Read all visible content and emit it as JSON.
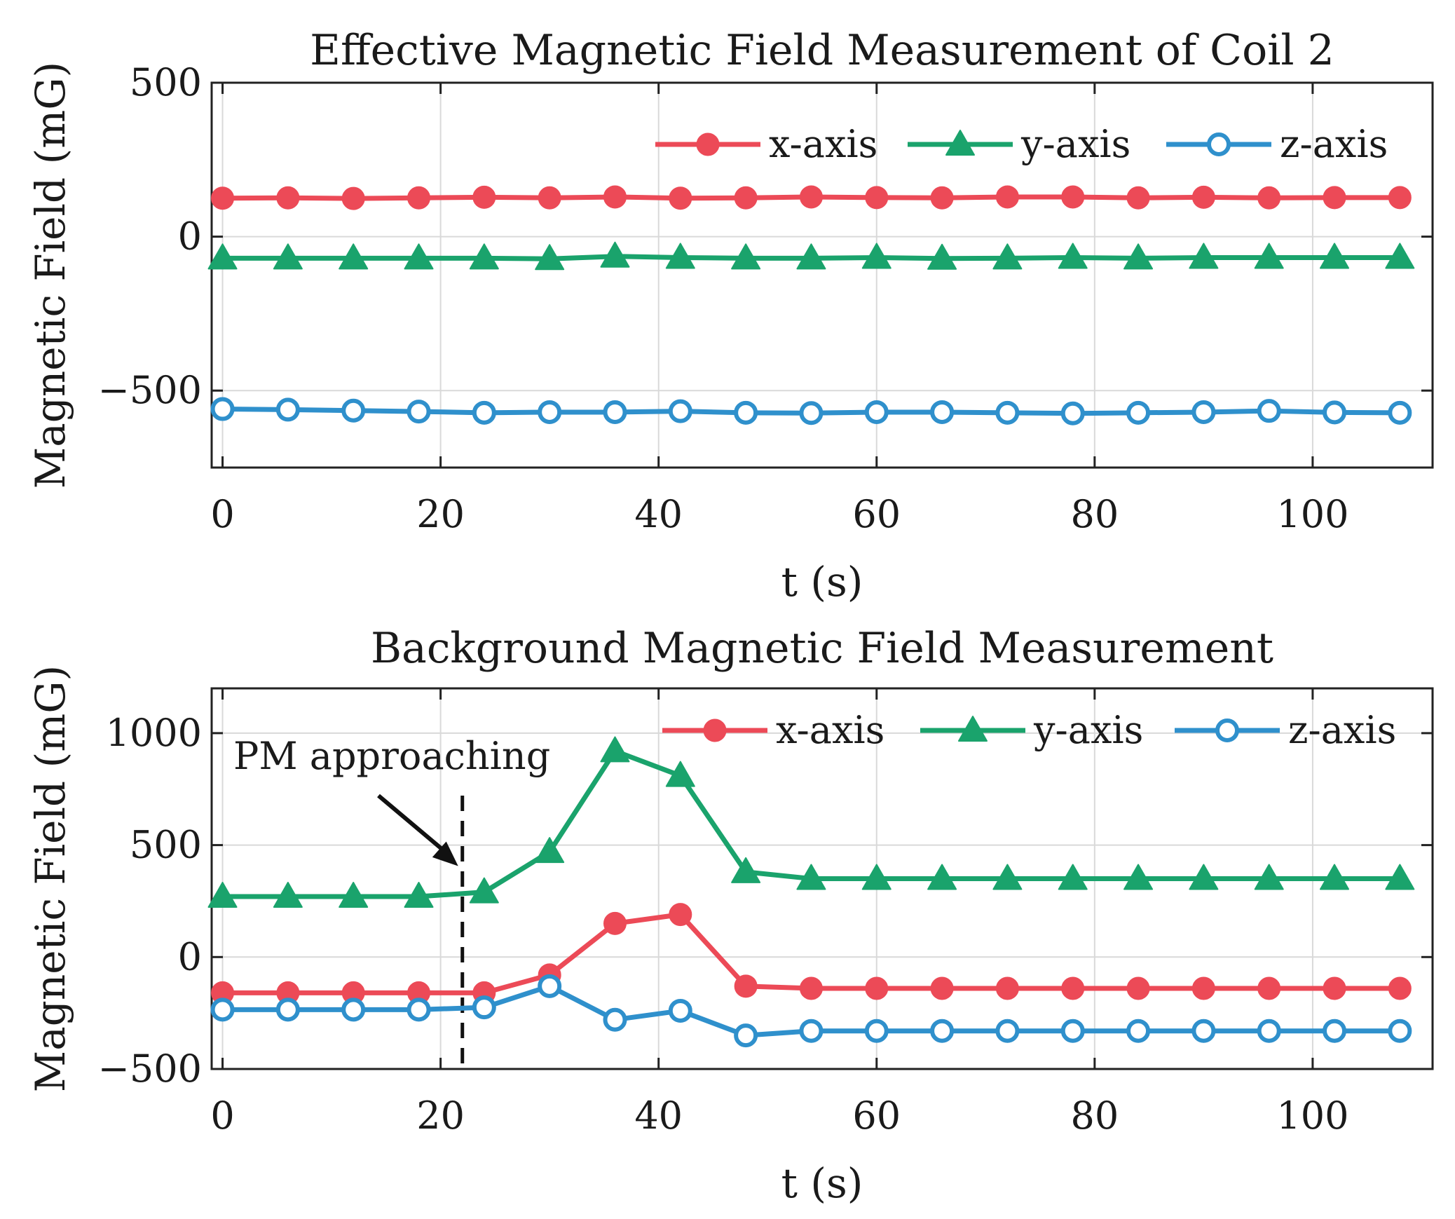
{
  "colors": {
    "x": "#ec4a57",
    "y": "#1aa36c",
    "z": "#2f90cc",
    "grid": "#d9d9d9",
    "axis": "#222222"
  },
  "chart_data": [
    {
      "type": "line",
      "title": "Effective Magnetic Field Measurement of Coil 2",
      "xlabel": "t (s)",
      "ylabel": "Magnetic Field (mG)",
      "xlim": [
        -1,
        111
      ],
      "ylim": [
        -750,
        500
      ],
      "xticks": [
        0,
        20,
        40,
        60,
        80,
        100
      ],
      "yticks": [
        -500,
        0,
        500
      ],
      "ytick_labels": [
        "−500",
        "0",
        "500"
      ],
      "xtick_labels": [
        "0",
        "20",
        "40",
        "60",
        "80",
        "100"
      ],
      "grid": true,
      "legend": "top-right",
      "x": [
        0,
        6,
        12,
        18,
        24,
        30,
        36,
        42,
        48,
        54,
        60,
        66,
        72,
        78,
        84,
        90,
        96,
        102,
        108
      ],
      "series": [
        {
          "name": "x-axis",
          "key": "x",
          "marker": "filled-circle",
          "values": [
            125,
            126,
            124,
            126,
            128,
            126,
            129,
            125,
            126,
            129,
            127,
            126,
            129,
            129,
            126,
            128,
            126,
            127,
            127
          ]
        },
        {
          "name": "y-axis",
          "key": "y",
          "marker": "filled-triangle",
          "values": [
            -70,
            -70,
            -70,
            -70,
            -70,
            -72,
            -64,
            -68,
            -70,
            -70,
            -68,
            -71,
            -70,
            -68,
            -70,
            -68,
            -68,
            -68,
            -68
          ]
        },
        {
          "name": "z-axis",
          "key": "z",
          "marker": "open-circle",
          "values": [
            -560,
            -562,
            -565,
            -568,
            -572,
            -570,
            -570,
            -567,
            -572,
            -573,
            -570,
            -570,
            -572,
            -574,
            -572,
            -570,
            -566,
            -571,
            -572
          ]
        }
      ]
    },
    {
      "type": "line",
      "title": "Background Magnetic Field Measurement",
      "xlabel": "t (s)",
      "ylabel": "Magnetic Field (mG)",
      "xlim": [
        -1,
        111
      ],
      "ylim": [
        -500,
        1200
      ],
      "xticks": [
        0,
        20,
        40,
        60,
        80,
        100
      ],
      "yticks": [
        -500,
        0,
        500,
        1000
      ],
      "ytick_labels": [
        "−500",
        "0",
        "500",
        "1000"
      ],
      "xtick_labels": [
        "0",
        "20",
        "40",
        "60",
        "80",
        "100"
      ],
      "grid": true,
      "legend": "top-right",
      "x": [
        0,
        6,
        12,
        18,
        24,
        30,
        36,
        42,
        48,
        54,
        60,
        66,
        72,
        78,
        84,
        90,
        96,
        102,
        108
      ],
      "series": [
        {
          "name": "x-axis",
          "key": "x",
          "marker": "filled-circle",
          "values": [
            -160,
            -160,
            -160,
            -160,
            -160,
            -80,
            150,
            190,
            -130,
            -140,
            -140,
            -140,
            -140,
            -140,
            -140,
            -140,
            -140,
            -140,
            -140
          ]
        },
        {
          "name": "y-axis",
          "key": "y",
          "marker": "filled-triangle",
          "values": [
            270,
            270,
            270,
            270,
            290,
            470,
            920,
            810,
            380,
            350,
            350,
            350,
            350,
            350,
            350,
            350,
            350,
            350,
            350
          ]
        },
        {
          "name": "z-axis",
          "key": "z",
          "marker": "open-circle",
          "values": [
            -235,
            -235,
            -235,
            -235,
            -225,
            -130,
            -280,
            -240,
            -350,
            -330,
            -330,
            -330,
            -330,
            -330,
            -330,
            -330,
            -330,
            -330,
            -330
          ]
        }
      ],
      "annotation": {
        "text": "PM approaching",
        "x": 22,
        "arrow_target_y": 400
      }
    }
  ]
}
